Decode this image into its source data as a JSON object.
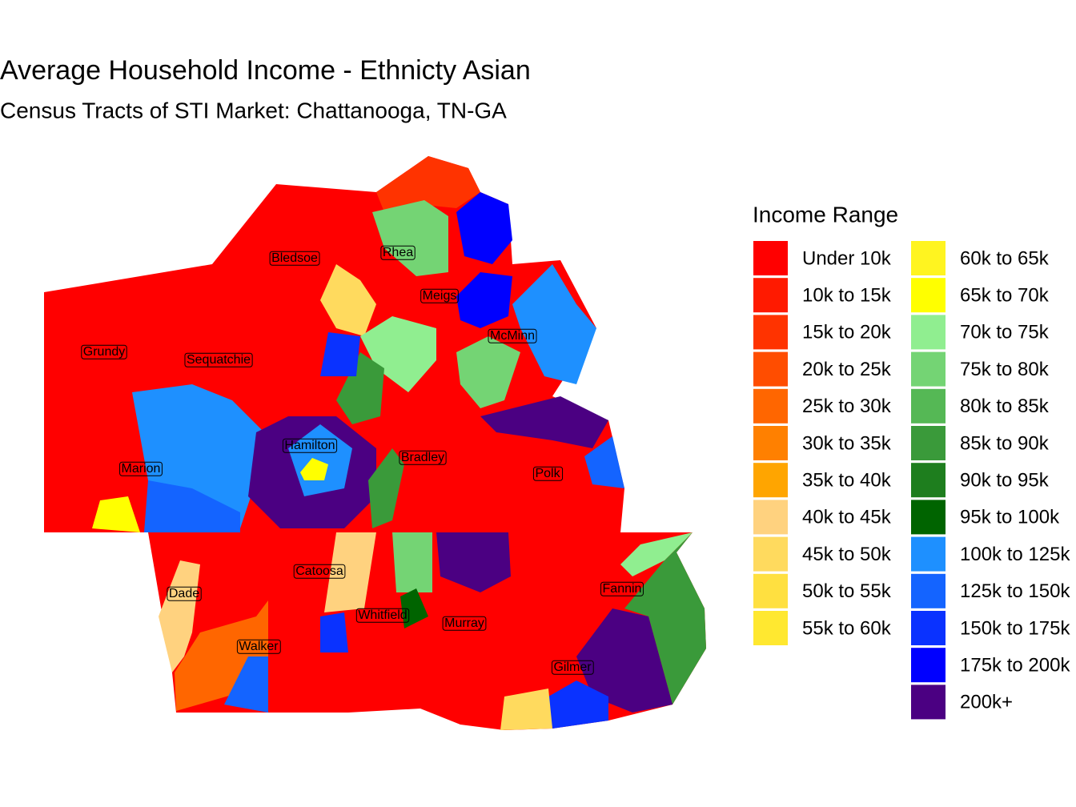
{
  "title": "Average Household Income - Ethnicty Asian",
  "subtitle": "Census Tracts of STI Market: Chattanooga, TN-GA",
  "legend": {
    "title": "Income Range",
    "items": [
      {
        "label": "Under 10k",
        "color": "#FF0000"
      },
      {
        "label": "10k to 15k",
        "color": "#FF1A00"
      },
      {
        "label": "15k to 20k",
        "color": "#FF3300"
      },
      {
        "label": "20k to 25k",
        "color": "#FF4D00"
      },
      {
        "label": "25k to 30k",
        "color": "#FF6600"
      },
      {
        "label": "30k to 35k",
        "color": "#FF8000"
      },
      {
        "label": "35k to 40k",
        "color": "#FFA500"
      },
      {
        "label": "40k to 45k",
        "color": "#FFD27F"
      },
      {
        "label": "45k to 50k",
        "color": "#FFDA5E"
      },
      {
        "label": "50k to 55k",
        "color": "#FFE040"
      },
      {
        "label": "55k to 60k",
        "color": "#FFE830"
      },
      {
        "label": "60k to 65k",
        "color": "#FFF420"
      },
      {
        "label": "65k to 70k",
        "color": "#FFFF00"
      },
      {
        "label": "70k to 75k",
        "color": "#90EE90"
      },
      {
        "label": "75k to 80k",
        "color": "#74D474"
      },
      {
        "label": "80k to 85k",
        "color": "#55B855"
      },
      {
        "label": "85k to 90k",
        "color": "#3A9A3A"
      },
      {
        "label": "90k to 95k",
        "color": "#1E7E1E"
      },
      {
        "label": "95k to 100k",
        "color": "#006400"
      },
      {
        "label": "100k to 125k",
        "color": "#1E90FF"
      },
      {
        "label": "125k to 150k",
        "color": "#1464FF"
      },
      {
        "label": "150k to 175k",
        "color": "#0A32FF"
      },
      {
        "label": "175k to 200k",
        "color": "#0000FF"
      },
      {
        "label": "200k+",
        "color": "#4B0082"
      }
    ]
  },
  "county_labels": [
    "Bledsoe",
    "Rhea",
    "Meigs",
    "McMinn",
    "Grundy",
    "Sequatchie",
    "Hamilton",
    "Bradley",
    "Marion",
    "Polk",
    "Catoosa",
    "Fannin",
    "Dade",
    "Whitfield",
    "Murray",
    "Walker",
    "Gilmer"
  ]
}
